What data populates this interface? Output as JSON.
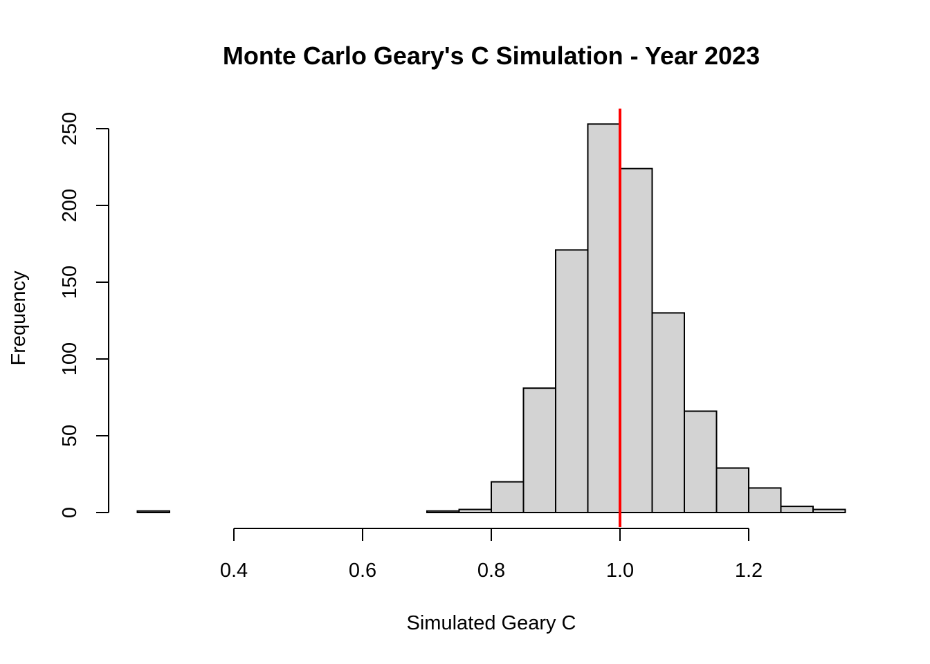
{
  "chart_data": {
    "type": "bar",
    "title": "Monte Carlo Geary's C Simulation - Year 2023",
    "xlabel": "Simulated Geary C",
    "ylabel": "Frequency",
    "xlim": [
      0.25,
      1.35
    ],
    "ylim": [
      0,
      250
    ],
    "x_ticks": [
      0.4,
      0.6,
      0.8,
      1.0,
      1.2
    ],
    "x_tick_labels": [
      "0.4",
      "0.6",
      "0.8",
      "1.0",
      "1.2"
    ],
    "y_ticks": [
      0,
      50,
      100,
      150,
      200,
      250
    ],
    "y_tick_labels": [
      "0",
      "50",
      "100",
      "150",
      "200",
      "250"
    ],
    "bin_width": 0.05,
    "bins": [
      {
        "start": 0.25,
        "end": 0.3,
        "count": 1
      },
      {
        "start": 0.3,
        "end": 0.35,
        "count": 0
      },
      {
        "start": 0.35,
        "end": 0.4,
        "count": 0
      },
      {
        "start": 0.4,
        "end": 0.45,
        "count": 0
      },
      {
        "start": 0.45,
        "end": 0.5,
        "count": 0
      },
      {
        "start": 0.5,
        "end": 0.55,
        "count": 0
      },
      {
        "start": 0.55,
        "end": 0.6,
        "count": 0
      },
      {
        "start": 0.6,
        "end": 0.65,
        "count": 0
      },
      {
        "start": 0.65,
        "end": 0.7,
        "count": 0
      },
      {
        "start": 0.7,
        "end": 0.75,
        "count": 1
      },
      {
        "start": 0.75,
        "end": 0.8,
        "count": 2
      },
      {
        "start": 0.8,
        "end": 0.85,
        "count": 20
      },
      {
        "start": 0.85,
        "end": 0.9,
        "count": 81
      },
      {
        "start": 0.9,
        "end": 0.95,
        "count": 171
      },
      {
        "start": 0.95,
        "end": 1.0,
        "count": 253
      },
      {
        "start": 1.0,
        "end": 1.05,
        "count": 224
      },
      {
        "start": 1.05,
        "end": 1.1,
        "count": 130
      },
      {
        "start": 1.1,
        "end": 1.15,
        "count": 66
      },
      {
        "start": 1.15,
        "end": 1.2,
        "count": 29
      },
      {
        "start": 1.2,
        "end": 1.25,
        "count": 16
      },
      {
        "start": 1.25,
        "end": 1.3,
        "count": 4
      },
      {
        "start": 1.3,
        "end": 1.35,
        "count": 2
      }
    ],
    "reference_line": {
      "x": 1.0,
      "color": "#ff0000"
    },
    "bar_fill": "#d3d3d3",
    "grid": false
  }
}
